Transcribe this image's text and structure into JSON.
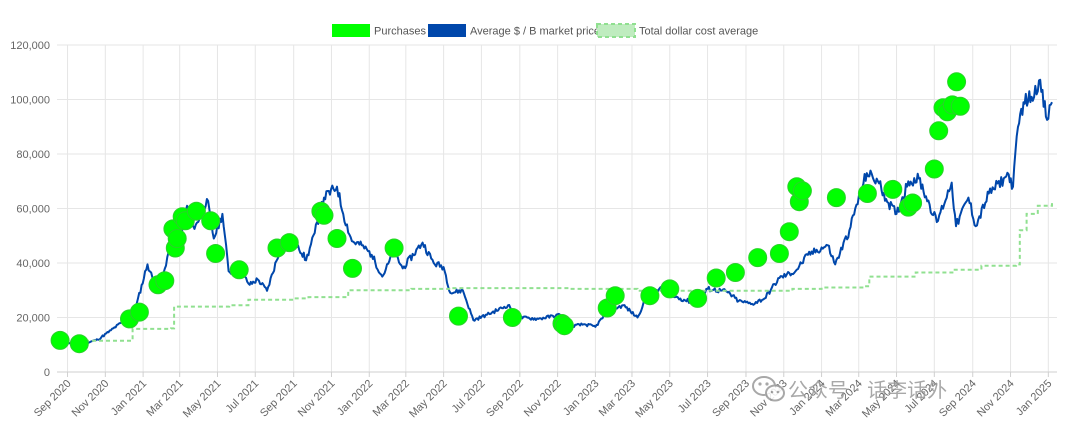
{
  "chart_data": {
    "type": "line",
    "title": "",
    "xlabel": "",
    "ylabel": "",
    "ylim": [
      0,
      120000
    ],
    "y_ticks": [
      0,
      20000,
      40000,
      60000,
      80000,
      100000,
      120000
    ],
    "y_tick_labels": [
      "0",
      "20,000",
      "40,000",
      "60,000",
      "80,000",
      "100,000",
      "120,000"
    ],
    "x_range": [
      "2020-08-15",
      "2025-01-15"
    ],
    "x_ticks": [
      {
        "date": "2020-09-01",
        "label": "Sep 2020"
      },
      {
        "date": "2020-11-01",
        "label": "Nov 2020"
      },
      {
        "date": "2021-01-01",
        "label": "Jan 2021"
      },
      {
        "date": "2021-03-01",
        "label": "Mar 2021"
      },
      {
        "date": "2021-05-01",
        "label": "May 2021"
      },
      {
        "date": "2021-07-01",
        "label": "Jul 2021"
      },
      {
        "date": "2021-09-01",
        "label": "Sep 2021"
      },
      {
        "date": "2021-11-01",
        "label": "Nov 2021"
      },
      {
        "date": "2022-01-01",
        "label": "Jan 2022"
      },
      {
        "date": "2022-03-01",
        "label": "Mar 2022"
      },
      {
        "date": "2022-05-01",
        "label": "May 2022"
      },
      {
        "date": "2022-07-01",
        "label": "Jul 2022"
      },
      {
        "date": "2022-09-01",
        "label": "Sep 2022"
      },
      {
        "date": "2022-11-01",
        "label": "Nov 2022"
      },
      {
        "date": "2023-01-01",
        "label": "Jan 2023"
      },
      {
        "date": "2023-03-01",
        "label": "Mar 2023"
      },
      {
        "date": "2023-05-01",
        "label": "May 2023"
      },
      {
        "date": "2023-07-01",
        "label": "Jul 2023"
      },
      {
        "date": "2023-09-01",
        "label": "Sep 2023"
      },
      {
        "date": "2023-11-01",
        "label": "Nov 2023"
      },
      {
        "date": "2024-01-01",
        "label": "Jan 2024"
      },
      {
        "date": "2024-03-01",
        "label": "Mar 2024"
      },
      {
        "date": "2024-05-01",
        "label": "May 2024"
      },
      {
        "date": "2024-07-01",
        "label": "Jul 2024"
      },
      {
        "date": "2024-09-01",
        "label": "Sep 2024"
      },
      {
        "date": "2024-11-01",
        "label": "Nov 2024"
      },
      {
        "date": "2025-01-01",
        "label": "Jan 2025"
      }
    ],
    "grid": true,
    "legend_position": "top-center",
    "legend": [
      {
        "key": "purchases",
        "label": "Purchases",
        "color": "#00ff00"
      },
      {
        "key": "price",
        "label": "Average $ / B market price",
        "color": "#0047ab"
      },
      {
        "key": "dca",
        "label": "Total dollar cost average",
        "color": "#90e090"
      }
    ],
    "series": [
      {
        "name": "Average $ / B market price",
        "key": "price",
        "color": "#0047ab",
        "points": [
          [
            "2020-08-15",
            11800
          ],
          [
            "2020-09-10",
            10300
          ],
          [
            "2020-10-01",
            10600
          ],
          [
            "2020-10-20",
            11900
          ],
          [
            "2020-11-10",
            15300
          ],
          [
            "2020-12-01",
            18800
          ],
          [
            "2020-12-20",
            23500
          ],
          [
            "2021-01-08",
            39500
          ],
          [
            "2021-01-20",
            32000
          ],
          [
            "2021-02-01",
            34000
          ],
          [
            "2021-02-15",
            48000
          ],
          [
            "2021-02-21",
            56000
          ],
          [
            "2021-02-28",
            46000
          ],
          [
            "2021-03-13",
            61000
          ],
          [
            "2021-03-25",
            52500
          ],
          [
            "2021-04-14",
            63500
          ],
          [
            "2021-04-25",
            49000
          ],
          [
            "2021-05-09",
            58000
          ],
          [
            "2021-05-19",
            37000
          ],
          [
            "2021-06-10",
            36000
          ],
          [
            "2021-06-22",
            32000
          ],
          [
            "2021-07-05",
            34000
          ],
          [
            "2021-07-20",
            29800
          ],
          [
            "2021-08-10",
            45000
          ],
          [
            "2021-08-25",
            48500
          ],
          [
            "2021-09-08",
            46500
          ],
          [
            "2021-09-21",
            41000
          ],
          [
            "2021-10-05",
            51000
          ],
          [
            "2021-10-20",
            64000
          ],
          [
            "2021-11-10",
            68000
          ],
          [
            "2021-11-20",
            58000
          ],
          [
            "2021-12-04",
            48000
          ],
          [
            "2021-12-20",
            46500
          ],
          [
            "2022-01-05",
            43000
          ],
          [
            "2022-01-22",
            35000
          ],
          [
            "2022-02-10",
            44000
          ],
          [
            "2022-02-24",
            38000
          ],
          [
            "2022-03-28",
            47500
          ],
          [
            "2022-04-15",
            40000
          ],
          [
            "2022-05-01",
            38500
          ],
          [
            "2022-05-12",
            29000
          ],
          [
            "2022-06-01",
            30000
          ],
          [
            "2022-06-18",
            19000
          ],
          [
            "2022-07-10",
            21000
          ],
          [
            "2022-08-13",
            24500
          ],
          [
            "2022-09-01",
            20000
          ],
          [
            "2022-10-01",
            19500
          ],
          [
            "2022-11-05",
            21000
          ],
          [
            "2022-11-10",
            16500
          ],
          [
            "2022-12-15",
            17500
          ],
          [
            "2023-01-01",
            16600
          ],
          [
            "2023-01-20",
            22000
          ],
          [
            "2023-02-15",
            24500
          ],
          [
            "2023-03-10",
            20000
          ],
          [
            "2023-03-25",
            28000
          ],
          [
            "2023-04-14",
            30500
          ],
          [
            "2023-05-10",
            27500
          ],
          [
            "2023-06-15",
            25000
          ],
          [
            "2023-07-01",
            30500
          ],
          [
            "2023-08-01",
            29500
          ],
          [
            "2023-08-20",
            26000
          ],
          [
            "2023-09-11",
            25000
          ],
          [
            "2023-10-01",
            27000
          ],
          [
            "2023-10-25",
            34500
          ],
          [
            "2023-11-20",
            37000
          ],
          [
            "2023-12-10",
            43000
          ],
          [
            "2024-01-11",
            46500
          ],
          [
            "2024-01-23",
            39500
          ],
          [
            "2024-02-15",
            52000
          ],
          [
            "2024-03-05",
            67000
          ],
          [
            "2024-03-14",
            73000
          ],
          [
            "2024-04-01",
            70000
          ],
          [
            "2024-04-18",
            62000
          ],
          [
            "2024-05-01",
            58000
          ],
          [
            "2024-05-20",
            70000
          ],
          [
            "2024-06-06",
            71000
          ],
          [
            "2024-07-05",
            55000
          ],
          [
            "2024-07-29",
            69500
          ],
          [
            "2024-08-05",
            53500
          ],
          [
            "2024-08-25",
            64000
          ],
          [
            "2024-09-06",
            53500
          ],
          [
            "2024-09-27",
            65500
          ],
          [
            "2024-10-29",
            72500
          ],
          [
            "2024-11-05",
            68000
          ],
          [
            "2024-11-13",
            90000
          ],
          [
            "2024-11-22",
            99000
          ],
          [
            "2024-12-05",
            101000
          ],
          [
            "2024-12-17",
            107000
          ],
          [
            "2024-12-30",
            92500
          ],
          [
            "2025-01-07",
            99000
          ]
        ]
      },
      {
        "name": "Total dollar cost average",
        "key": "dca",
        "color": "#90e090",
        "step": true,
        "points": [
          [
            "2020-08-15",
            11500
          ],
          [
            "2020-10-25",
            11500
          ],
          [
            "2020-12-15",
            15800
          ],
          [
            "2021-02-15",
            16000
          ],
          [
            "2021-02-20",
            24000
          ],
          [
            "2021-05-20",
            24500
          ],
          [
            "2021-06-20",
            26500
          ],
          [
            "2021-09-01",
            27000
          ],
          [
            "2021-09-25",
            27500
          ],
          [
            "2021-11-25",
            27500
          ],
          [
            "2021-11-28",
            30000
          ],
          [
            "2022-01-15",
            30000
          ],
          [
            "2022-03-10",
            30500
          ],
          [
            "2022-05-15",
            30800
          ],
          [
            "2022-11-20",
            30500
          ],
          [
            "2023-03-10",
            29800
          ],
          [
            "2023-11-15",
            30500
          ],
          [
            "2024-01-01",
            31000
          ],
          [
            "2024-03-10",
            31500
          ],
          [
            "2024-03-18",
            35000
          ],
          [
            "2024-06-01",
            36500
          ],
          [
            "2024-08-01",
            37500
          ],
          [
            "2024-09-15",
            39000
          ],
          [
            "2024-11-10",
            39500
          ],
          [
            "2024-11-16",
            52000
          ],
          [
            "2024-11-27",
            58000
          ],
          [
            "2024-12-15",
            61000
          ],
          [
            "2025-01-07",
            62500
          ]
        ]
      }
    ],
    "purchases": [
      [
        "2020-08-20",
        11600
      ],
      [
        "2020-09-20",
        10400
      ],
      [
        "2020-12-10",
        19500
      ],
      [
        "2020-12-26",
        22000
      ],
      [
        "2021-01-25",
        32000
      ],
      [
        "2021-02-05",
        33500
      ],
      [
        "2021-02-18",
        52500
      ],
      [
        "2021-02-22",
        45500
      ],
      [
        "2021-02-25",
        49000
      ],
      [
        "2021-03-05",
        57000
      ],
      [
        "2021-03-10",
        55500
      ],
      [
        "2021-03-28",
        59000
      ],
      [
        "2021-04-20",
        55500
      ],
      [
        "2021-04-28",
        43500
      ],
      [
        "2021-06-05",
        37500
      ],
      [
        "2021-08-05",
        45500
      ],
      [
        "2021-08-25",
        47500
      ],
      [
        "2021-10-15",
        59000
      ],
      [
        "2021-10-20",
        57500
      ],
      [
        "2021-11-10",
        49000
      ],
      [
        "2021-12-05",
        38000
      ],
      [
        "2022-02-10",
        45500
      ],
      [
        "2022-05-25",
        20500
      ],
      [
        "2022-08-20",
        20000
      ],
      [
        "2022-11-08",
        17800
      ],
      [
        "2022-11-12",
        17000
      ],
      [
        "2023-01-20",
        23500
      ],
      [
        "2023-02-02",
        28000
      ],
      [
        "2023-03-30",
        28000
      ],
      [
        "2023-05-01",
        30500
      ],
      [
        "2023-06-15",
        27000
      ],
      [
        "2023-07-15",
        34500
      ],
      [
        "2023-08-15",
        36500
      ],
      [
        "2023-09-20",
        42000
      ],
      [
        "2023-10-25",
        43500
      ],
      [
        "2023-11-10",
        51500
      ],
      [
        "2023-11-22",
        68000
      ],
      [
        "2023-11-26",
        62500
      ],
      [
        "2023-12-01",
        66500
      ],
      [
        "2024-01-25",
        64000
      ],
      [
        "2024-03-15",
        65500
      ],
      [
        "2024-04-25",
        67000
      ],
      [
        "2024-05-20",
        60500
      ],
      [
        "2024-05-27",
        62000
      ],
      [
        "2024-07-01",
        74500
      ],
      [
        "2024-07-08",
        88500
      ],
      [
        "2024-07-15",
        97000
      ],
      [
        "2024-07-22",
        95500
      ],
      [
        "2024-07-30",
        98000
      ],
      [
        "2024-08-06",
        106500
      ],
      [
        "2024-08-12",
        97500
      ]
    ]
  },
  "watermark": {
    "text": "公众号 · 话李话外",
    "icon": "wechat-icon",
    "color": "#9a9a9a"
  }
}
